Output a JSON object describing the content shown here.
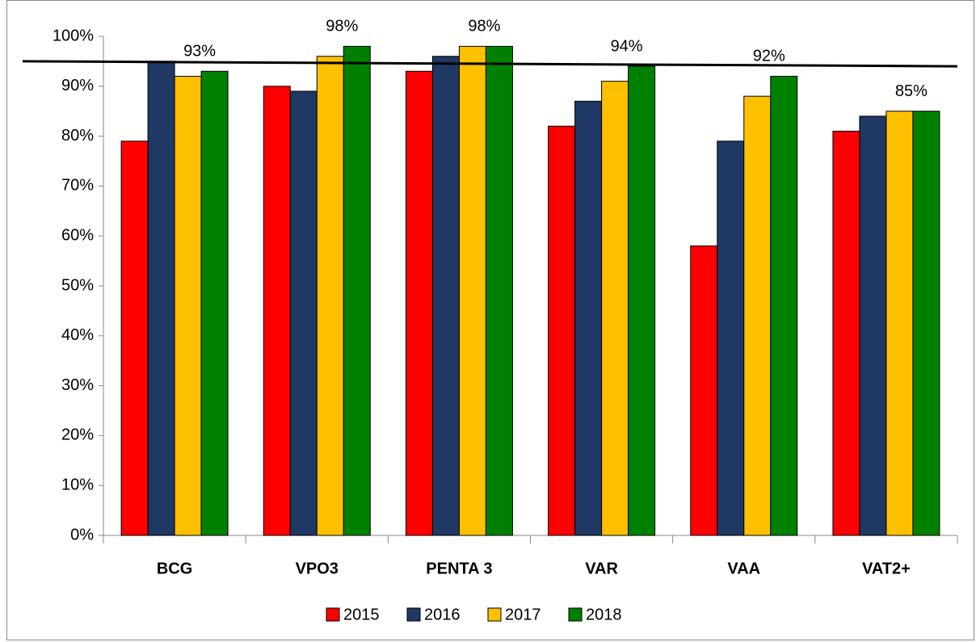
{
  "chart_data": {
    "type": "bar",
    "categories": [
      "BCG",
      "VPO3",
      "PENTA 3",
      "VAR",
      "VAA",
      "VAT2+"
    ],
    "series": [
      {
        "name": "2015",
        "color": "#ff0000",
        "values": [
          79,
          90,
          93,
          82,
          58,
          81
        ]
      },
      {
        "name": "2016",
        "color": "#1f3864",
        "values": [
          95,
          89,
          96,
          87,
          79,
          84
        ]
      },
      {
        "name": "2017",
        "color": "#ffc000",
        "values": [
          92,
          96,
          98,
          91,
          88,
          85
        ]
      },
      {
        "name": "2018",
        "color": "#008000",
        "values": [
          93,
          98,
          98,
          94,
          92,
          85
        ],
        "value_labels": [
          "93%",
          "98%",
          "98%",
          "94%",
          "92%",
          "85%"
        ]
      }
    ],
    "target_line": {
      "color": "#000000",
      "values": [
        95,
        94
      ]
    },
    "ylim": [
      0,
      100
    ],
    "yticks": [
      {
        "value": 0,
        "label": "0%"
      },
      {
        "value": 10,
        "label": "10%"
      },
      {
        "value": 20,
        "label": "20%"
      },
      {
        "value": 30,
        "label": "30%"
      },
      {
        "value": 40,
        "label": "40%"
      },
      {
        "value": 50,
        "label": "50%"
      },
      {
        "value": 60,
        "label": "60%"
      },
      {
        "value": 70,
        "label": "70%"
      },
      {
        "value": 80,
        "label": "80%"
      },
      {
        "value": 90,
        "label": "90%"
      },
      {
        "value": 100,
        "label": "100%"
      }
    ],
    "grid": false,
    "legend": "bottom"
  }
}
